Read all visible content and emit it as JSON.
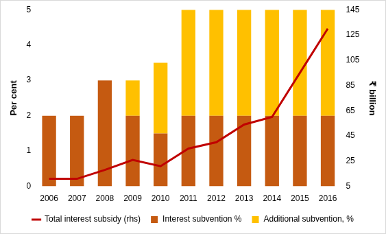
{
  "chart_data": {
    "type": "bar",
    "categories": [
      "2006",
      "2007",
      "2008",
      "2009",
      "2010",
      "2011",
      "2012",
      "2013",
      "2014",
      "2015",
      "2016"
    ],
    "series": [
      {
        "name": "Interest subvention %",
        "type": "bar",
        "color": "#c55a11",
        "values": [
          2,
          2,
          3,
          2,
          1.5,
          2,
          2,
          2,
          2,
          2,
          2
        ]
      },
      {
        "name": "Additional subvention, %",
        "type": "bar",
        "color": "#ffc000",
        "values": [
          0,
          0,
          0,
          1,
          2,
          3,
          3,
          3,
          3,
          3,
          3
        ]
      },
      {
        "name": "Total interest subsidy (rhs)",
        "type": "line",
        "axis": "y2",
        "color": "#c00000",
        "values": [
          11,
          11,
          18,
          26,
          21,
          35,
          40,
          54,
          60,
          95,
          130
        ]
      }
    ],
    "stacked": true,
    "y_label": "Per cent",
    "y2_label": "₹ billion",
    "ylim": [
      0,
      5
    ],
    "yticks": [
      0,
      1,
      2,
      3,
      4,
      5
    ],
    "y2lim": [
      5,
      145
    ],
    "y2ticks": [
      5,
      25,
      45,
      65,
      85,
      105,
      125,
      145
    ],
    "grid": false,
    "legend": "bottom"
  }
}
